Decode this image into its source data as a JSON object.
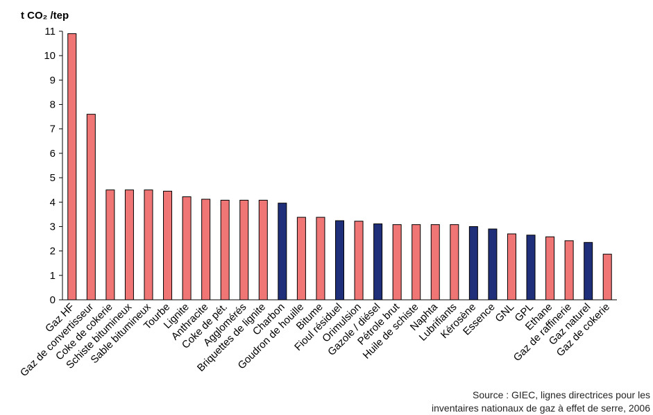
{
  "chart_data": {
    "type": "bar",
    "ylabel": "t CO₂ /tep",
    "ylim": [
      0,
      11
    ],
    "yticks": [
      0,
      1,
      2,
      3,
      4,
      5,
      6,
      7,
      8,
      9,
      10,
      11
    ],
    "grid": false,
    "categories": [
      "Gaz HF",
      "Gaz de convertisseur",
      "Coke de cokerie",
      "Schiste bitumineux",
      "Sable bitumineux",
      "Tourbe",
      "Lignite",
      "Anthracite",
      "Coke de pét.",
      "Agglomérés",
      "Briquettes de lignite",
      "Charbon",
      "Goudron de houille",
      "Bitume",
      "Fioul résiduel",
      "Orimulsion",
      "Gazole / diésel",
      "Pétrole brut",
      "Huile de schiste",
      "Naphta",
      "Lubrifiants",
      "Kérosène",
      "Essence",
      "GNL",
      "GPL",
      "Ethane",
      "Gaz de raffinerie",
      "Gaz naturel",
      "Gaz de cokerie"
    ],
    "values": [
      10.9,
      7.6,
      4.5,
      4.5,
      4.5,
      4.45,
      4.22,
      4.12,
      4.08,
      4.08,
      4.08,
      3.96,
      3.38,
      3.38,
      3.24,
      3.22,
      3.11,
      3.08,
      3.08,
      3.08,
      3.08,
      3.0,
      2.9,
      2.7,
      2.65,
      2.58,
      2.42,
      2.35,
      1.87
    ],
    "highlighted": [
      false,
      false,
      false,
      false,
      false,
      false,
      false,
      false,
      false,
      false,
      false,
      true,
      false,
      false,
      true,
      false,
      true,
      false,
      false,
      false,
      false,
      true,
      true,
      false,
      true,
      false,
      false,
      true,
      false
    ],
    "colors": {
      "default": "#f07676",
      "highlight": "#1f2f7a",
      "border": "#000000"
    }
  },
  "source": {
    "line1": "Source : GIEC, lignes directrices pour les",
    "line2": "inventaires nationaux de gaz à effet de serre, 2006"
  }
}
